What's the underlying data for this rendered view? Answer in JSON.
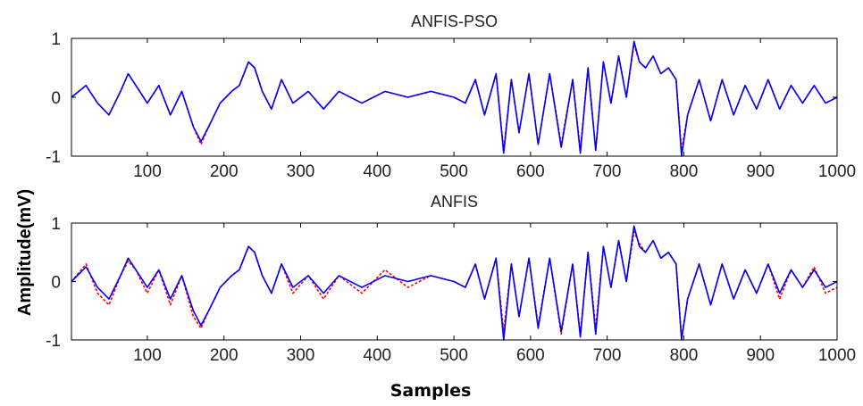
{
  "figure": {
    "ylabel": "Amplitude(mV)",
    "xlabel": "Samples"
  },
  "chart_data": [
    {
      "type": "line",
      "title": "ANFIS-PSO",
      "xlim": [
        1,
        1000
      ],
      "ylim": [
        -1,
        1
      ],
      "xticks": [
        100,
        200,
        300,
        400,
        500,
        600,
        700,
        800,
        900,
        1000
      ],
      "xtick_labels": [
        "100",
        "200",
        "300",
        "400",
        "500",
        "600",
        "700",
        "800",
        "900",
        "1000"
      ],
      "yticks": [
        -1,
        0,
        1
      ],
      "ytick_labels": [
        "-1",
        "0",
        "1"
      ],
      "grid": false,
      "series": [
        {
          "color": "#ff0000",
          "style": "dashed",
          "x": [
            1,
            20,
            35,
            50,
            65,
            75,
            85,
            100,
            115,
            130,
            145,
            160,
            170,
            180,
            195,
            210,
            220,
            232,
            240,
            250,
            262,
            275,
            290,
            310,
            330,
            350,
            380,
            410,
            440,
            470,
            500,
            515,
            528,
            540,
            555,
            565,
            575,
            585,
            598,
            610,
            625,
            640,
            655,
            665,
            675,
            685,
            695,
            705,
            715,
            725,
            735,
            742,
            750,
            760,
            770,
            780,
            790,
            797,
            805,
            820,
            835,
            850,
            865,
            880,
            895,
            910,
            925,
            940,
            955,
            970,
            985,
            1000
          ],
          "y": [
            0,
            0.2,
            -0.1,
            -0.3,
            0.1,
            0.4,
            0.2,
            -0.1,
            0.2,
            -0.3,
            0.1,
            -0.5,
            -0.8,
            -0.5,
            -0.1,
            0.1,
            0.2,
            0.6,
            0.5,
            0.1,
            -0.2,
            0.3,
            -0.1,
            0.1,
            -0.2,
            0.1,
            -0.1,
            0.1,
            0,
            0.1,
            0,
            -0.1,
            0.3,
            -0.3,
            0.4,
            -0.9,
            0.3,
            -0.6,
            0.4,
            -0.8,
            0.4,
            -0.8,
            0.3,
            -0.9,
            0.5,
            -0.9,
            0.6,
            -0.1,
            0.7,
            0,
            0.9,
            0.6,
            0.5,
            0.7,
            0.4,
            0.5,
            0.3,
            -0.9,
            -0.3,
            0.3,
            -0.4,
            0.3,
            -0.3,
            0.2,
            -0.2,
            0.3,
            -0.2,
            0.2,
            -0.1,
            0.2,
            -0.1,
            0
          ]
        },
        {
          "color": "#0000ff",
          "style": "solid",
          "x": [
            1,
            20,
            35,
            50,
            65,
            75,
            85,
            100,
            115,
            130,
            145,
            160,
            170,
            180,
            195,
            210,
            220,
            232,
            240,
            250,
            262,
            275,
            290,
            310,
            330,
            350,
            380,
            410,
            440,
            470,
            500,
            515,
            528,
            540,
            555,
            565,
            575,
            585,
            598,
            610,
            625,
            640,
            655,
            665,
            675,
            685,
            695,
            705,
            715,
            725,
            735,
            742,
            750,
            760,
            770,
            780,
            790,
            797,
            805,
            820,
            835,
            850,
            865,
            880,
            895,
            910,
            925,
            940,
            955,
            970,
            985,
            1000
          ],
          "y": [
            0,
            0.2,
            -0.1,
            -0.3,
            0.1,
            0.4,
            0.2,
            -0.1,
            0.2,
            -0.3,
            0.1,
            -0.5,
            -0.75,
            -0.5,
            -0.1,
            0.1,
            0.2,
            0.6,
            0.5,
            0.1,
            -0.2,
            0.3,
            -0.1,
            0.1,
            -0.2,
            0.1,
            -0.1,
            0.1,
            0,
            0.1,
            0,
            -0.1,
            0.3,
            -0.3,
            0.4,
            -0.95,
            0.3,
            -0.6,
            0.4,
            -0.8,
            0.4,
            -0.85,
            0.3,
            -0.95,
            0.5,
            -0.9,
            0.6,
            -0.1,
            0.7,
            0,
            0.95,
            0.6,
            0.5,
            0.7,
            0.4,
            0.5,
            0.3,
            -1,
            -0.3,
            0.3,
            -0.4,
            0.3,
            -0.3,
            0.2,
            -0.2,
            0.3,
            -0.2,
            0.2,
            -0.1,
            0.2,
            -0.1,
            0
          ]
        }
      ]
    },
    {
      "type": "line",
      "title": "ANFIS",
      "xlim": [
        1,
        1000
      ],
      "ylim": [
        -1,
        1
      ],
      "xticks": [
        100,
        200,
        300,
        400,
        500,
        600,
        700,
        800,
        900,
        1000
      ],
      "xtick_labels": [
        "100",
        "200",
        "300",
        "400",
        "500",
        "600",
        "700",
        "800",
        "900",
        "1000"
      ],
      "yticks": [
        -1,
        0,
        1
      ],
      "ytick_labels": [
        "-1",
        "0",
        "1"
      ],
      "grid": false,
      "series": [
        {
          "color": "#ff0000",
          "style": "dashed",
          "x": [
            1,
            20,
            35,
            50,
            65,
            75,
            85,
            100,
            115,
            130,
            145,
            160,
            170,
            180,
            195,
            210,
            220,
            232,
            240,
            250,
            262,
            275,
            290,
            310,
            330,
            350,
            380,
            410,
            440,
            470,
            500,
            515,
            528,
            540,
            555,
            565,
            575,
            585,
            598,
            610,
            625,
            640,
            655,
            665,
            675,
            685,
            695,
            705,
            715,
            725,
            735,
            742,
            750,
            760,
            770,
            780,
            790,
            797,
            805,
            820,
            835,
            850,
            865,
            880,
            895,
            910,
            925,
            940,
            955,
            970,
            985,
            1000
          ],
          "y": [
            0,
            0.3,
            -0.2,
            -0.4,
            0.1,
            0.35,
            0.2,
            -0.2,
            0.2,
            -0.4,
            0.1,
            -0.6,
            -0.8,
            -0.5,
            -0.1,
            0.1,
            0.2,
            0.6,
            0.5,
            0.1,
            -0.2,
            0.3,
            -0.2,
            0.1,
            -0.3,
            0.1,
            -0.2,
            0.2,
            -0.1,
            0.1,
            0,
            -0.1,
            0.3,
            -0.3,
            0.4,
            -0.85,
            0.3,
            -0.6,
            0.4,
            -0.75,
            0.4,
            -0.9,
            0.3,
            -0.9,
            0.5,
            -0.8,
            0.6,
            -0.1,
            0.7,
            0,
            0.85,
            0.65,
            0.5,
            0.7,
            0.4,
            0.5,
            0.3,
            -0.95,
            -0.3,
            0.3,
            -0.4,
            0.3,
            -0.3,
            0.2,
            -0.2,
            0.3,
            -0.3,
            0.2,
            -0.1,
            0.25,
            -0.2,
            -0.1
          ]
        },
        {
          "color": "#0000ff",
          "style": "solid",
          "x": [
            1,
            20,
            35,
            50,
            65,
            75,
            85,
            100,
            115,
            130,
            145,
            160,
            170,
            180,
            195,
            210,
            220,
            232,
            240,
            250,
            262,
            275,
            290,
            310,
            330,
            350,
            380,
            410,
            440,
            470,
            500,
            515,
            528,
            540,
            555,
            565,
            575,
            585,
            598,
            610,
            625,
            640,
            655,
            665,
            675,
            685,
            695,
            705,
            715,
            725,
            735,
            742,
            750,
            760,
            770,
            780,
            790,
            797,
            805,
            820,
            835,
            850,
            865,
            880,
            895,
            910,
            925,
            940,
            955,
            970,
            985,
            1000
          ],
          "y": [
            0,
            0.25,
            -0.1,
            -0.3,
            0.1,
            0.4,
            0.2,
            -0.1,
            0.2,
            -0.3,
            0.1,
            -0.5,
            -0.75,
            -0.5,
            -0.1,
            0.1,
            0.2,
            0.6,
            0.5,
            0.1,
            -0.2,
            0.3,
            -0.1,
            0.1,
            -0.2,
            0.1,
            -0.1,
            0.1,
            0,
            0.1,
            0,
            -0.1,
            0.3,
            -0.3,
            0.4,
            -1,
            0.3,
            -0.6,
            0.4,
            -0.8,
            0.4,
            -0.85,
            0.3,
            -0.95,
            0.5,
            -0.9,
            0.6,
            -0.1,
            0.7,
            0,
            0.95,
            0.6,
            0.5,
            0.7,
            0.4,
            0.5,
            0.3,
            -1,
            -0.3,
            0.3,
            -0.4,
            0.3,
            -0.3,
            0.2,
            -0.2,
            0.3,
            -0.2,
            0.2,
            -0.1,
            0.2,
            -0.1,
            0
          ]
        }
      ]
    }
  ]
}
